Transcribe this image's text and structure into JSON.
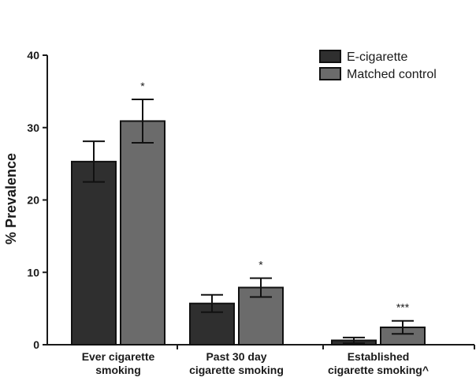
{
  "chart_data": {
    "type": "bar",
    "title": "",
    "xlabel": "",
    "ylabel": "% Prevalence",
    "ylim": [
      0,
      40
    ],
    "yticks": [
      0,
      10,
      20,
      30,
      40
    ],
    "grid": false,
    "legend_position": "top-right",
    "categories": [
      [
        "Ever cigarette",
        "smoking"
      ],
      [
        "Past 30 day",
        "cigarette smoking"
      ],
      [
        "Established",
        "cigarette smoking^"
      ]
    ],
    "series": [
      {
        "name": "E-cigarette",
        "color": "#2f2f2f",
        "values": [
          25.3,
          5.7,
          0.6
        ],
        "error": [
          2.8,
          1.2,
          0.4
        ]
      },
      {
        "name": "Matched control",
        "color": "#6b6b6b",
        "values": [
          30.9,
          7.9,
          2.4
        ],
        "error": [
          3.0,
          1.3,
          0.9
        ]
      }
    ],
    "annotations": [
      {
        "category": 0,
        "series": 1,
        "text": "*"
      },
      {
        "category": 1,
        "series": 1,
        "text": "*"
      },
      {
        "category": 2,
        "series": 1,
        "text": "***"
      }
    ]
  }
}
